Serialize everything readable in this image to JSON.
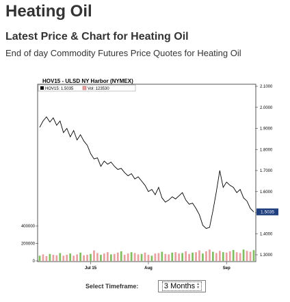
{
  "page": {
    "title": "Heating Oil",
    "subtitle": "Latest Price & Chart for Heating Oil",
    "description": "End of day Commodity Futures Price Quotes for Heating Oil"
  },
  "timeframe": {
    "label": "Select Timeframe:",
    "selected": "3 Months"
  },
  "colors": {
    "price_line": "#000000",
    "volume_bar": "#e8a0a0",
    "volume_bar_green": "#7fbf5f",
    "last_price_box": "#1f3f7f",
    "background": "#ffffff"
  },
  "chart_data": {
    "type": "line",
    "title": "HOV15 - ULSD NY Harbor (NYMEX)",
    "legend": {
      "price": "HOV15: 1.5035",
      "volume": "Vol: 123530"
    },
    "last_price_label": "1.5035",
    "price_axis": {
      "ticks": [
        "2.1000",
        "2.0000",
        "1.9000",
        "1.8000",
        "1.7000",
        "1.6000",
        "1.5000",
        "1.4000",
        "1.3000"
      ],
      "range": [
        1.3,
        2.1
      ]
    },
    "volume_axis": {
      "ticks": [
        "400000",
        "200000",
        "0"
      ],
      "range": [
        0,
        400000
      ]
    },
    "x_ticks": [
      "Jul 15",
      "Aug",
      "Sep"
    ],
    "x_tick_index": [
      15,
      32,
      55
    ],
    "price": [
      1.905,
      1.935,
      1.955,
      1.93,
      1.95,
      1.915,
      1.935,
      1.88,
      1.9,
      1.86,
      1.89,
      1.845,
      1.87,
      1.84,
      1.82,
      1.78,
      1.755,
      1.76,
      1.72,
      1.745,
      1.73,
      1.74,
      1.72,
      1.705,
      1.71,
      1.69,
      1.675,
      1.685,
      1.66,
      1.67,
      1.65,
      1.63,
      1.6,
      1.61,
      1.585,
      1.62,
      1.57,
      1.55,
      1.56,
      1.575,
      1.565,
      1.58,
      1.595,
      1.56,
      1.54,
      1.545,
      1.52,
      1.49,
      1.44,
      1.425,
      1.43,
      1.51,
      1.6,
      1.7,
      1.62,
      1.645,
      1.63,
      1.62,
      1.595,
      1.61,
      1.57,
      1.555,
      1.52,
      1.5035
    ],
    "volume": [
      60000,
      75000,
      55000,
      80000,
      70000,
      65000,
      90000,
      60000,
      70000,
      85000,
      60000,
      75000,
      95000,
      65000,
      70000,
      80000,
      120000,
      90000,
      70000,
      85000,
      100000,
      75000,
      80000,
      95000,
      110000,
      70000,
      85000,
      100000,
      90000,
      75000,
      80000,
      95000,
      70000,
      60000,
      85000,
      90000,
      105000,
      80000,
      75000,
      95000,
      100000,
      85000,
      90000,
      110000,
      80000,
      95000,
      100000,
      120000,
      85000,
      110000,
      130000,
      105000,
      90000,
      115000,
      100000,
      95000,
      110000,
      125000,
      100000,
      90000,
      130000,
      115000,
      105000,
      123530
    ]
  }
}
